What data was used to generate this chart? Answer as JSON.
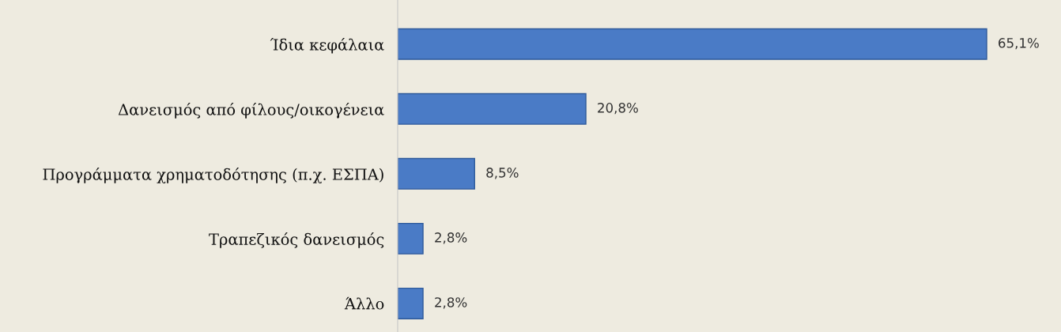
{
  "chart_data": {
    "type": "bar",
    "orientation": "horizontal",
    "categories": [
      "Ίδια κεφάλαια",
      "Δανεισμός από φίλους/οικογένεια",
      "Προγράμματα χρηματοδότησης (π.χ. ΕΣΠΑ)",
      "Τραπεζικός δανεισμός",
      "Άλλο"
    ],
    "values": [
      65.1,
      20.8,
      8.5,
      2.8,
      2.8
    ],
    "value_labels": [
      "65,1%",
      "20,8%",
      "8,5%",
      "2,8%",
      "2,8%"
    ],
    "color": "#4a7bc6",
    "grid": false,
    "legend": false
  }
}
